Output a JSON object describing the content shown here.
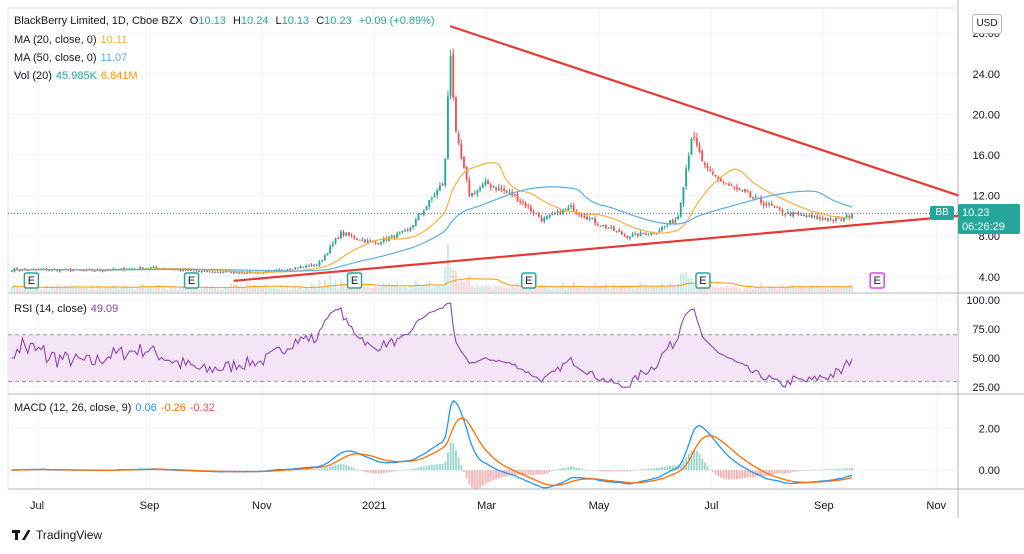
{
  "header": {
    "symbol": "BlackBerry Limited, 1D, Cboe BZX",
    "o_label": "O",
    "o": "10.13",
    "h_label": "H",
    "h": "10.24",
    "l_label": "L",
    "l": "10.13",
    "c_label": "C",
    "c": "10.23",
    "change": "+0.09 (+0.89%)"
  },
  "legend": {
    "ma20_label": "MA (20, close, 0)",
    "ma20_value": "10.11",
    "ma50_label": "MA (50, close, 0)",
    "ma50_value": "11.07",
    "vol_label": "Vol (20)",
    "vol_value1": "45.985K",
    "vol_value2": "6.841M",
    "rsi_label": "RSI (14, close)",
    "rsi_value": "49.09",
    "macd_label": "MACD (12, 26, close, 9)",
    "macd_value1": "0.06",
    "macd_value2": "-0.26",
    "macd_value3": "-0.32"
  },
  "currency": "USD",
  "price_tag": {
    "ticker": "BB",
    "price": "10.23",
    "countdown": "06:26:29"
  },
  "branding": "TradingView",
  "colors": {
    "up": "#26a69a",
    "down": "#ef5350",
    "ma20": "#f5b041",
    "ma50": "#5dade2",
    "rsi": "#8e44ad",
    "rsi_band": "#f3e5f5",
    "macd": "#2196f3",
    "signal": "#ff6d00",
    "trend": "#e53935",
    "volume_ma": "#ff9800"
  },
  "chart_data": [
    {
      "type": "candlestick",
      "title": "BlackBerry Limited, 1D, Cboe BZX",
      "x_ticks": [
        "Jul",
        "Sep",
        "Nov",
        "2021",
        "Mar",
        "May",
        "Jul",
        "Sep",
        "Nov"
      ],
      "y_ticks": [
        "4.00",
        "8.00",
        "12.00",
        "16.00",
        "20.00",
        "24.00",
        "28.00"
      ],
      "ylim": [
        2.5,
        29.5
      ],
      "last_price": 10.23,
      "close_path": [
        {
          "m": 0,
          "v": 4.7
        },
        {
          "m": 1,
          "v": 4.6
        },
        {
          "m": 2,
          "v": 4.9
        },
        {
          "m": 3,
          "v": 4.5
        },
        {
          "m": 4,
          "v": 4.4
        },
        {
          "m": 5,
          "v": 5.2
        },
        {
          "m": 5.4,
          "v": 8.3
        },
        {
          "m": 6,
          "v": 7.3
        },
        {
          "m": 6.6,
          "v": 8.5
        },
        {
          "m": 7.0,
          "v": 11.5
        },
        {
          "m": 7.25,
          "v": 13.5
        },
        {
          "m": 7.35,
          "v": 27.0
        },
        {
          "m": 7.45,
          "v": 18.0
        },
        {
          "m": 7.7,
          "v": 12.0
        },
        {
          "m": 8,
          "v": 13.2
        },
        {
          "m": 8.5,
          "v": 12.0
        },
        {
          "m": 9,
          "v": 9.6
        },
        {
          "m": 9.5,
          "v": 10.8
        },
        {
          "m": 10,
          "v": 9.2
        },
        {
          "m": 10.5,
          "v": 8.0
        },
        {
          "m": 11,
          "v": 8.4
        },
        {
          "m": 11.4,
          "v": 9.8
        },
        {
          "m": 11.65,
          "v": 18.0
        },
        {
          "m": 11.9,
          "v": 14.5
        },
        {
          "m": 12.3,
          "v": 13.0
        },
        {
          "m": 12.8,
          "v": 11.6
        },
        {
          "m": 13.3,
          "v": 10.3
        },
        {
          "m": 13.8,
          "v": 9.8
        },
        {
          "m": 14.3,
          "v": 9.6
        },
        {
          "m": 14.55,
          "v": 10.23
        }
      ],
      "trendlines": [
        {
          "name": "upper",
          "from": {
            "m": 7.35,
            "v": 28.7
          },
          "to": {
            "m": 16.4,
            "v": 12.0
          }
        },
        {
          "name": "lower",
          "from": {
            "m": 3.5,
            "v": 3.6
          },
          "to": {
            "m": 16.4,
            "v": 10.0
          }
        }
      ],
      "earnings_markers": [
        "E",
        "E",
        "E",
        "E",
        "E",
        "E"
      ]
    },
    {
      "type": "line",
      "name": "RSI",
      "y_ticks": [
        "25.00",
        "50.00",
        "75.00",
        "100.00"
      ],
      "ylim": [
        20,
        105
      ],
      "band": [
        30,
        70
      ],
      "last_value": 49.09
    },
    {
      "type": "line",
      "name": "MACD",
      "y_ticks": [
        "0.00",
        "2.00"
      ],
      "ylim": [
        -0.9,
        3.6
      ],
      "last_values": [
        0.06,
        -0.26,
        -0.32
      ]
    }
  ]
}
